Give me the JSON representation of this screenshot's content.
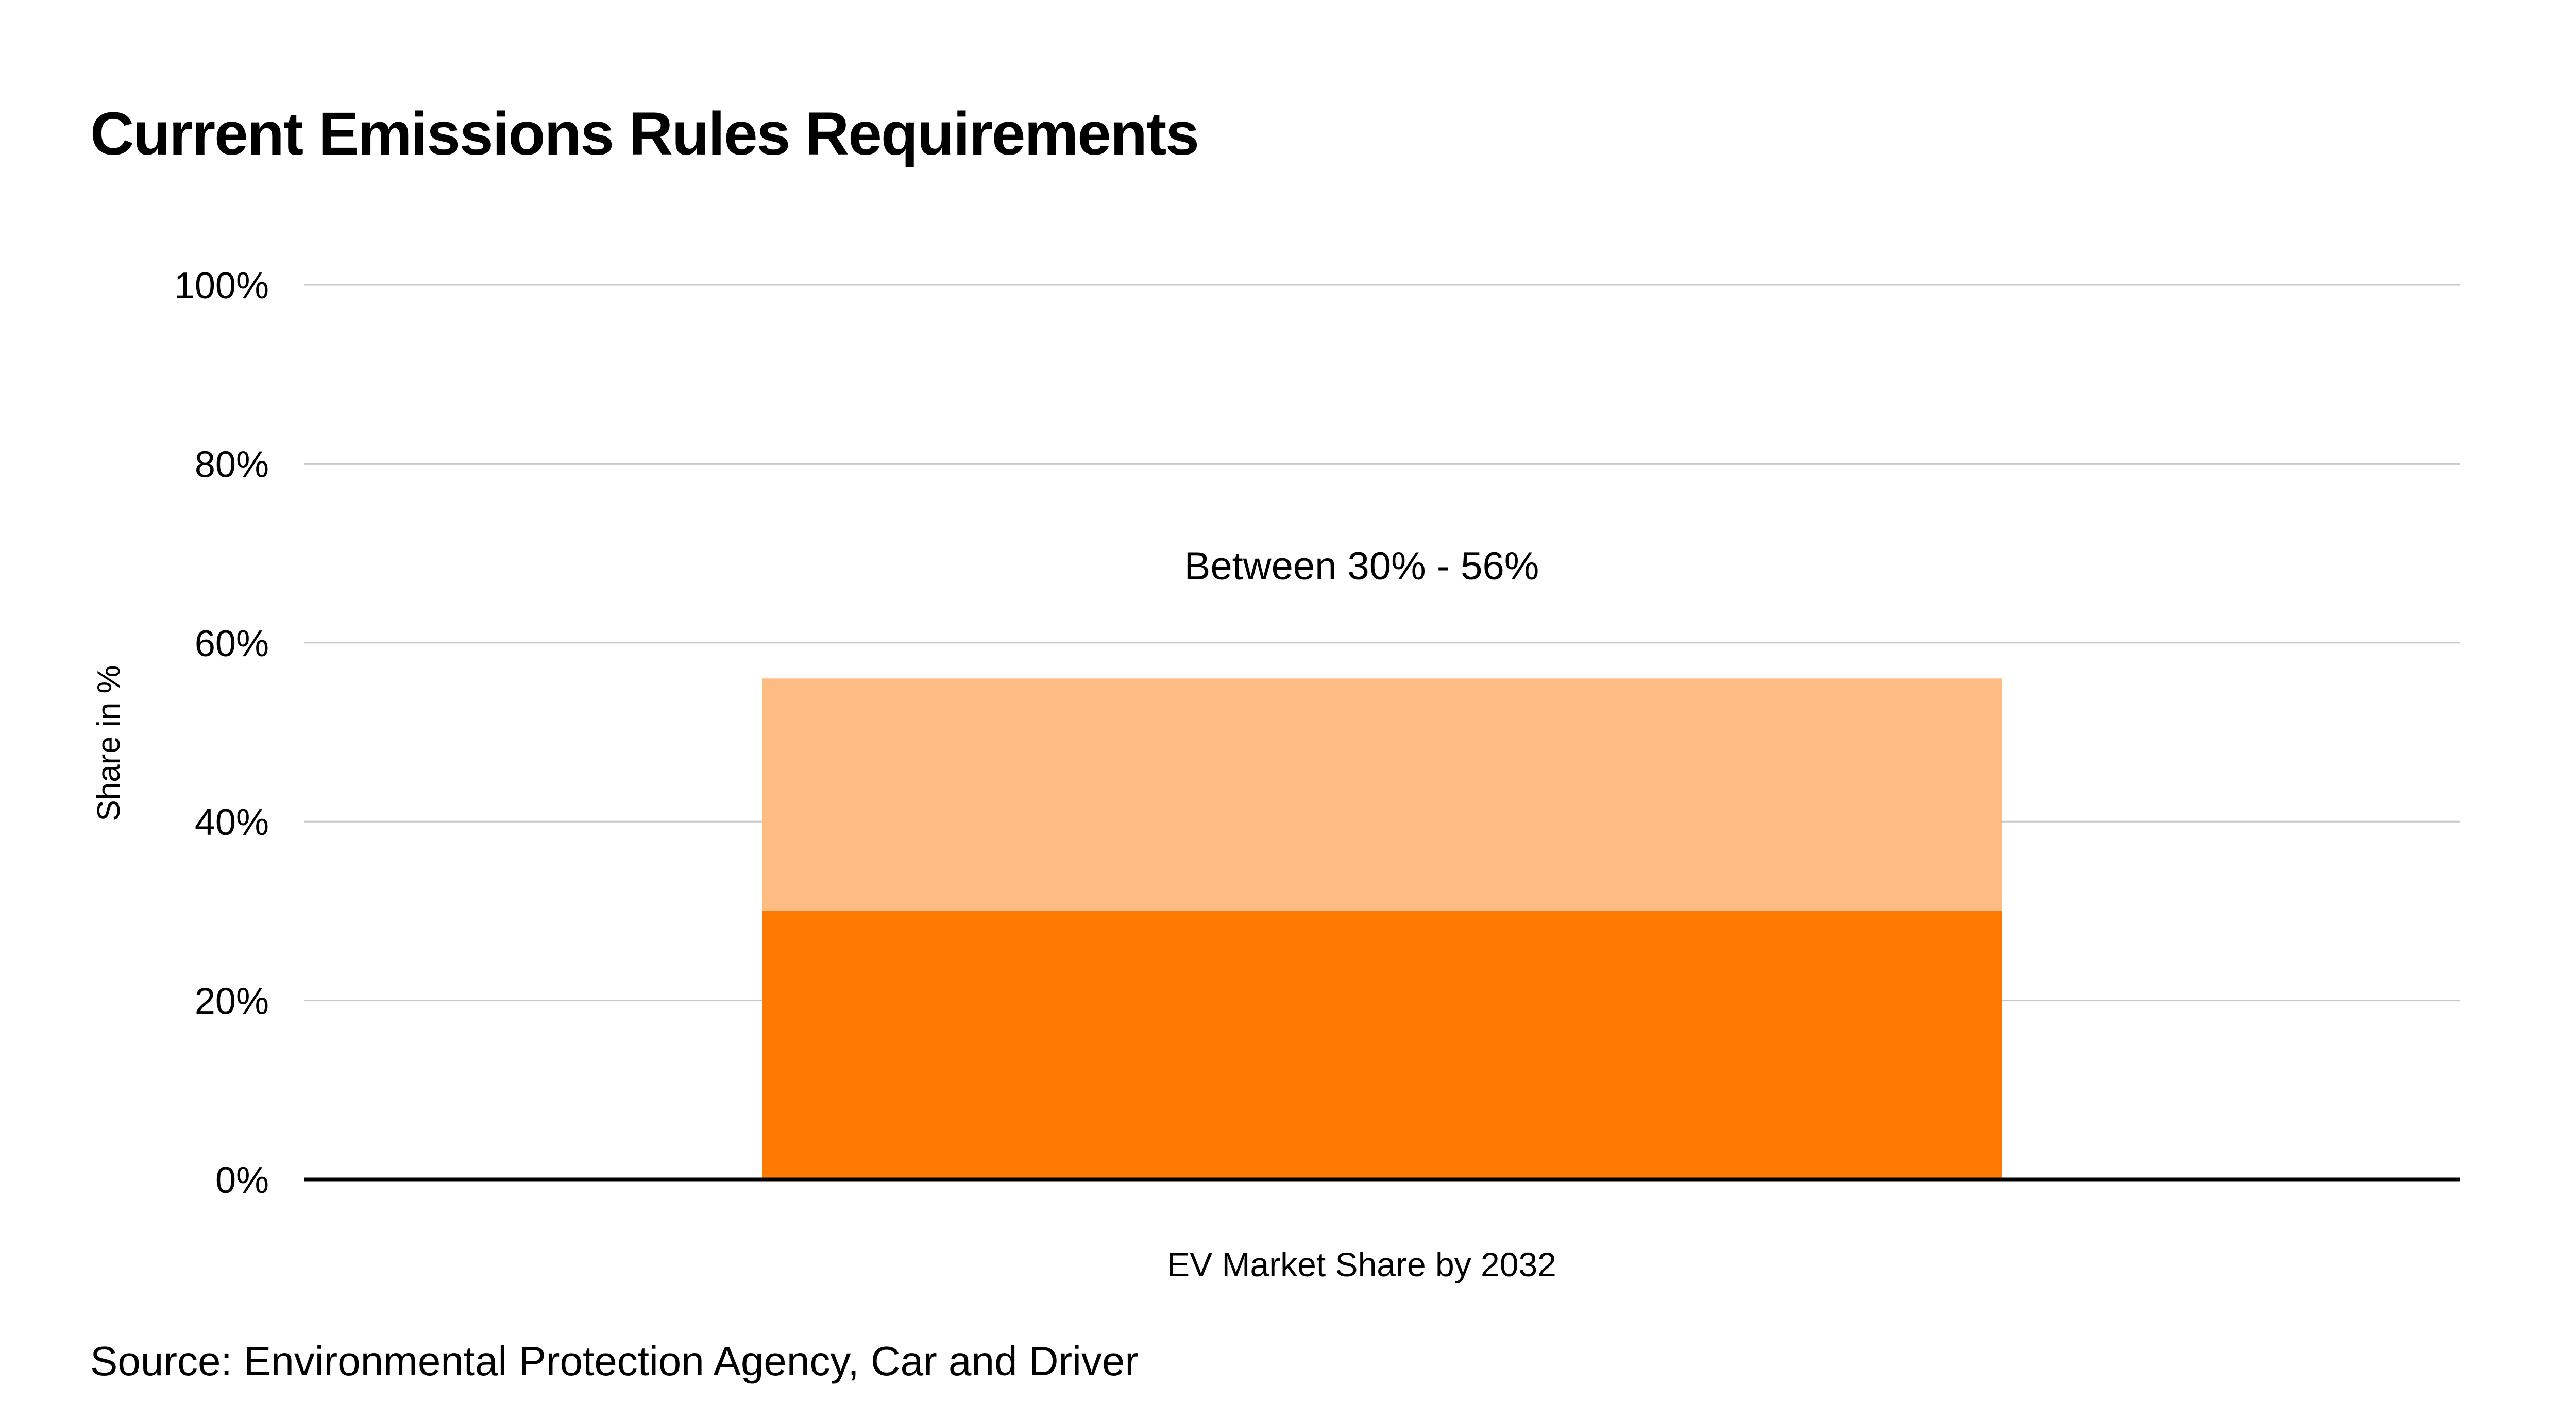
{
  "chart_data": {
    "type": "bar",
    "stacked": true,
    "title": "Current Emissions Rules Requirements",
    "ylabel": "Share in %",
    "xlabel": "",
    "categories": [
      "EV Market Share by 2032"
    ],
    "series": [
      {
        "values": [
          30
        ],
        "color": "#FF7A00"
      },
      {
        "values": [
          26
        ],
        "color": "#FFBB84"
      }
    ],
    "annotation": "Between 30% - 56%",
    "ylim": [
      0,
      100
    ],
    "yticks": [
      0,
      20,
      40,
      60,
      80,
      100
    ],
    "ytick_labels": [
      "0%",
      "20%",
      "40%",
      "60%",
      "80%",
      "100%"
    ],
    "grid": true,
    "source": "Source: Environmental Protection Agency, Car and Driver"
  }
}
